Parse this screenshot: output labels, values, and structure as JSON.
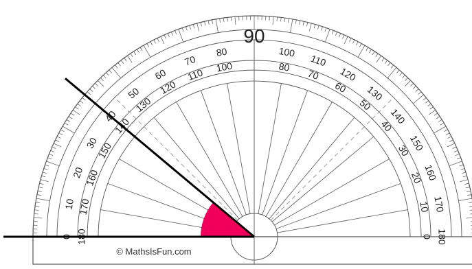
{
  "protractor": {
    "center_label": "90",
    "outer_scale": {
      "labels": [
        "0",
        "10",
        "20",
        "30",
        "40",
        "50",
        "60",
        "70",
        "80",
        "100",
        "110",
        "120",
        "130",
        "140",
        "150",
        "160",
        "170",
        "180"
      ]
    },
    "inner_scale": {
      "labels": [
        "180",
        "170",
        "160",
        "150",
        "140",
        "130",
        "120",
        "110",
        "100",
        "80",
        "70",
        "60",
        "50",
        "40",
        "30",
        "20",
        "10",
        "0"
      ]
    },
    "colors": {
      "outline": "#555555",
      "ticks": "#666666",
      "text": "#222222",
      "guide": "#999999"
    }
  },
  "angle": {
    "measured_degrees": 40,
    "arc_color": "#f0005a",
    "line_color": "#000000"
  },
  "copyright": "© MathsIsFun.com"
}
